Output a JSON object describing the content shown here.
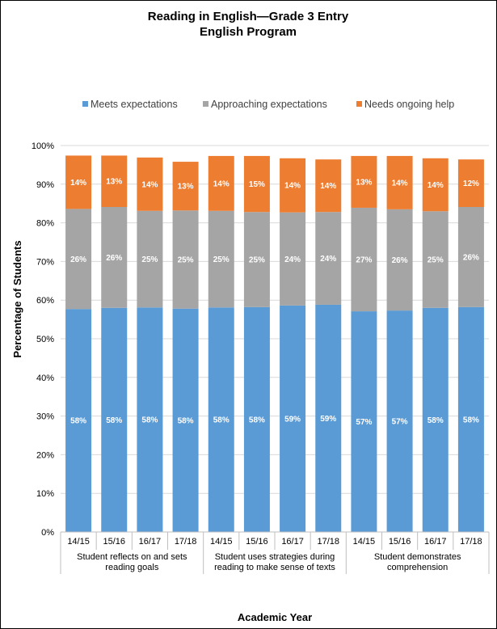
{
  "chart_data": {
    "type": "bar",
    "stacked": true,
    "title": [
      "Reading in English—Grade 3 Entry",
      "English Program"
    ],
    "xlabel": "Academic Year",
    "ylabel": "Percentage of Students",
    "ylim": [
      0,
      100
    ],
    "yticks": [
      0,
      10,
      20,
      30,
      40,
      50,
      60,
      70,
      80,
      90,
      100
    ],
    "ytick_labels": [
      "0%",
      "10%",
      "20%",
      "30%",
      "40%",
      "50%",
      "60%",
      "70%",
      "80%",
      "90%",
      "100%"
    ],
    "legend_position": "top",
    "categories": [
      "14/15",
      "15/16",
      "16/17",
      "17/18",
      "14/15",
      "15/16",
      "16/17",
      "17/18",
      "14/15",
      "15/16",
      "16/17",
      "17/18"
    ],
    "groups": [
      {
        "label": [
          "Student reflects on and sets",
          "reading goals"
        ],
        "size": 4
      },
      {
        "label": [
          "Student uses strategies during",
          "reading to make sense of texts"
        ],
        "size": 4
      },
      {
        "label": [
          "Student demonstrates",
          "comprehension"
        ],
        "size": 4
      }
    ],
    "series": [
      {
        "name": "Meets expectations",
        "color": "#5B9BD5",
        "values": [
          57.7,
          58.0,
          58.1,
          57.8,
          58.1,
          58.2,
          58.6,
          58.8,
          57.1,
          57.3,
          58.0,
          58.2
        ],
        "labels": [
          "58%",
          "58%",
          "58%",
          "58%",
          "58%",
          "58%",
          "59%",
          "59%",
          "57%",
          "57%",
          "58%",
          "58%"
        ]
      },
      {
        "name": "Approaching expectations",
        "color": "#A5A5A5",
        "values": [
          25.9,
          26.1,
          25.0,
          25.4,
          25.0,
          24.6,
          24.1,
          24.0,
          26.8,
          26.2,
          25.0,
          25.9
        ],
        "labels": [
          "26%",
          "26%",
          "25%",
          "25%",
          "25%",
          "25%",
          "24%",
          "24%",
          "27%",
          "26%",
          "25%",
          "26%"
        ]
      },
      {
        "name": "Needs ongoing help",
        "color": "#ED7D31",
        "values": [
          13.8,
          13.3,
          13.8,
          12.6,
          14.2,
          14.5,
          14.0,
          13.6,
          13.4,
          13.8,
          13.7,
          12.3
        ],
        "labels": [
          "14%",
          "13%",
          "14%",
          "13%",
          "14%",
          "15%",
          "14%",
          "14%",
          "13%",
          "14%",
          "14%",
          "12%"
        ]
      }
    ]
  }
}
